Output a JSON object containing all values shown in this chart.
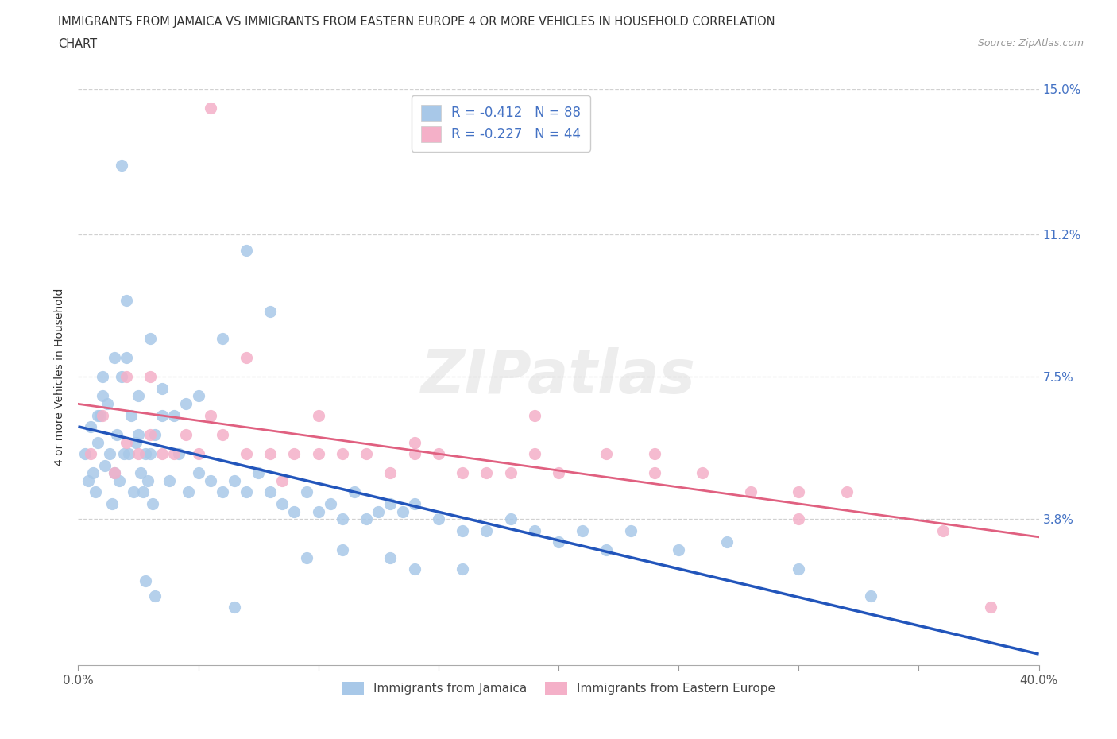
{
  "title_line1": "IMMIGRANTS FROM JAMAICA VS IMMIGRANTS FROM EASTERN EUROPE 4 OR MORE VEHICLES IN HOUSEHOLD CORRELATION",
  "title_line2": "CHART",
  "source": "Source: ZipAtlas.com",
  "ylabel": "4 or more Vehicles in Household",
  "legend_label1": "Immigrants from Jamaica",
  "legend_label2": "Immigrants from Eastern Europe",
  "R1": -0.412,
  "N1": 88,
  "R2": -0.227,
  "N2": 44,
  "color1": "#a8c8e8",
  "color2": "#f4b0c8",
  "trendline_color1": "#2255bb",
  "trendline_color2": "#e06080",
  "xlim": [
    0.0,
    40.0
  ],
  "ylim": [
    0.0,
    15.0
  ],
  "xtick_positions": [
    0.0,
    5.0,
    10.0,
    15.0,
    20.0,
    25.0,
    30.0,
    35.0,
    40.0
  ],
  "xtick_show_labels": [
    0.0,
    40.0
  ],
  "ytick_positions": [
    3.8,
    7.5,
    11.2,
    15.0
  ],
  "ytick_labels": [
    "3.8%",
    "7.5%",
    "11.2%",
    "15.0%"
  ],
  "watermark_text": "ZIPatlas",
  "grid_color": "#cccccc",
  "jamaica_x": [
    0.3,
    0.4,
    0.5,
    0.6,
    0.7,
    0.8,
    0.9,
    1.0,
    1.1,
    1.2,
    1.3,
    1.4,
    1.5,
    1.6,
    1.7,
    1.8,
    1.9,
    2.0,
    2.1,
    2.2,
    2.3,
    2.4,
    2.5,
    2.6,
    2.7,
    2.8,
    2.9,
    3.0,
    3.1,
    3.2,
    3.5,
    3.8,
    4.2,
    4.6,
    5.0,
    5.5,
    6.0,
    6.5,
    7.0,
    7.5,
    8.0,
    8.5,
    9.0,
    9.5,
    10.0,
    10.5,
    11.0,
    11.5,
    12.0,
    12.5,
    13.0,
    13.5,
    14.0,
    15.0,
    16.0,
    17.0,
    18.0,
    19.0,
    20.0,
    21.0,
    22.0,
    23.0,
    25.0,
    27.0,
    30.0,
    33.0,
    7.0,
    8.0,
    6.0,
    5.0,
    4.0,
    3.0,
    2.0,
    1.5,
    1.0,
    0.8,
    2.5,
    3.5,
    4.5,
    9.5,
    14.0,
    11.0,
    16.0,
    13.0,
    6.5,
    3.2,
    2.8,
    1.8
  ],
  "jamaica_y": [
    5.5,
    4.8,
    6.2,
    5.0,
    4.5,
    5.8,
    6.5,
    7.0,
    5.2,
    6.8,
    5.5,
    4.2,
    5.0,
    6.0,
    4.8,
    7.5,
    5.5,
    8.0,
    5.5,
    6.5,
    4.5,
    5.8,
    6.0,
    5.0,
    4.5,
    5.5,
    4.8,
    5.5,
    4.2,
    6.0,
    6.5,
    4.8,
    5.5,
    4.5,
    5.0,
    4.8,
    4.5,
    4.8,
    4.5,
    5.0,
    4.5,
    4.2,
    4.0,
    4.5,
    4.0,
    4.2,
    3.8,
    4.5,
    3.8,
    4.0,
    4.2,
    4.0,
    4.2,
    3.8,
    3.5,
    3.5,
    3.8,
    3.5,
    3.2,
    3.5,
    3.0,
    3.5,
    3.0,
    3.2,
    2.5,
    1.8,
    10.8,
    9.2,
    8.5,
    7.0,
    6.5,
    8.5,
    9.5,
    8.0,
    7.5,
    6.5,
    7.0,
    7.2,
    6.8,
    2.8,
    2.5,
    3.0,
    2.5,
    2.8,
    1.5,
    1.8,
    2.2,
    13.0
  ],
  "eastern_x": [
    0.5,
    1.0,
    1.5,
    2.0,
    2.5,
    3.0,
    3.5,
    4.0,
    4.5,
    5.0,
    5.5,
    6.0,
    7.0,
    8.0,
    9.0,
    10.0,
    11.0,
    12.0,
    13.0,
    14.0,
    15.0,
    16.0,
    17.0,
    18.0,
    19.0,
    20.0,
    22.0,
    24.0,
    26.0,
    28.0,
    30.0,
    32.0,
    36.0,
    38.0,
    2.0,
    3.0,
    7.0,
    10.0,
    14.0,
    19.0,
    24.0,
    30.0,
    5.5,
    8.5
  ],
  "eastern_y": [
    5.5,
    6.5,
    5.0,
    5.8,
    5.5,
    6.0,
    5.5,
    5.5,
    6.0,
    5.5,
    6.5,
    6.0,
    5.5,
    5.5,
    5.5,
    5.5,
    5.5,
    5.5,
    5.0,
    5.5,
    5.5,
    5.0,
    5.0,
    5.0,
    5.5,
    5.0,
    5.5,
    5.0,
    5.0,
    4.5,
    4.5,
    4.5,
    3.5,
    1.5,
    7.5,
    7.5,
    8.0,
    6.5,
    5.8,
    6.5,
    5.5,
    3.8,
    14.5,
    4.8
  ]
}
